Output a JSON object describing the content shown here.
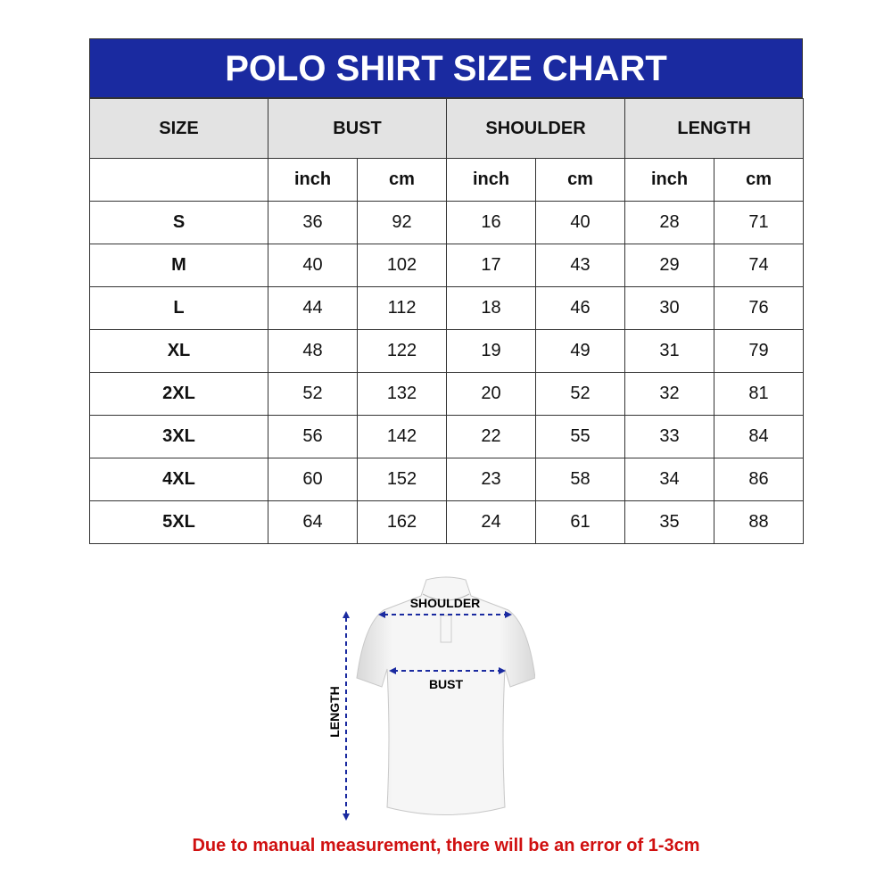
{
  "title": "POLO SHIRT SIZE CHART",
  "headers": [
    "SIZE",
    "BUST",
    "SHOULDER",
    "LENGTH"
  ],
  "units": [
    "inch",
    "cm",
    "inch",
    "cm",
    "inch",
    "cm"
  ],
  "rows": [
    [
      "S",
      "36",
      "92",
      "16",
      "40",
      "28",
      "71"
    ],
    [
      "M",
      "40",
      "102",
      "17",
      "43",
      "29",
      "74"
    ],
    [
      "L",
      "44",
      "112",
      "18",
      "46",
      "30",
      "76"
    ],
    [
      "XL",
      "48",
      "122",
      "19",
      "49",
      "31",
      "79"
    ],
    [
      "2XL",
      "52",
      "132",
      "20",
      "52",
      "32",
      "81"
    ],
    [
      "3XL",
      "56",
      "142",
      "22",
      "55",
      "33",
      "84"
    ],
    [
      "4XL",
      "60",
      "152",
      "23",
      "58",
      "34",
      "86"
    ],
    [
      "5XL",
      "64",
      "162",
      "24",
      "61",
      "35",
      "88"
    ]
  ],
  "diagram": {
    "shoulder": "SHOULDER",
    "bust": "BUST",
    "length": "LENGTH"
  },
  "note": "Due to manual measurement, there will be an error of 1-3cm",
  "colors": {
    "header": "#1a2aa0",
    "arrow": "#1a2aa0",
    "note": "#d01010"
  }
}
